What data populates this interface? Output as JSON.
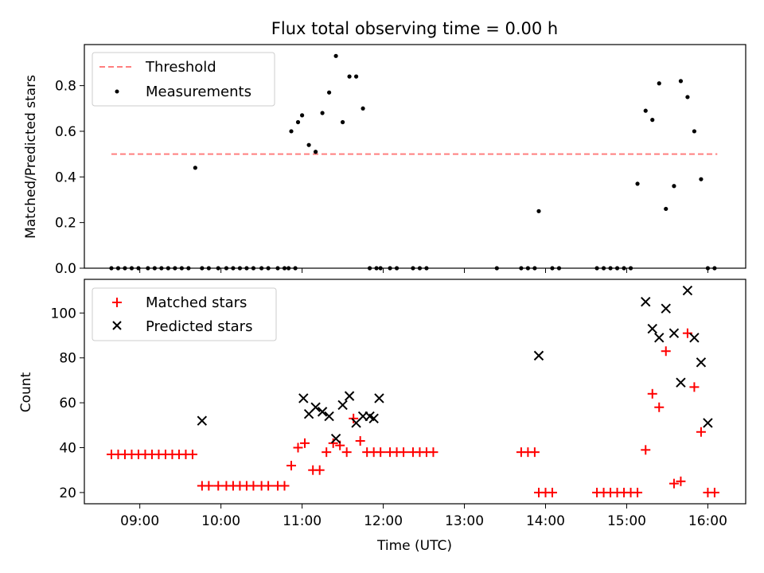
{
  "chart_data": [
    {
      "type": "scatter",
      "title": "Flux total observing time = 0.00 h",
      "xlabel": "",
      "ylabel": "Matched/Predicted stars",
      "xlim": [
        "08:19",
        "16:28"
      ],
      "ylim": [
        0,
        0.98
      ],
      "yticks": [
        0.0,
        0.2,
        0.4,
        0.6,
        0.8
      ],
      "ytick_labels": [
        "0.0",
        "0.2",
        "0.4",
        "0.6",
        "0.8"
      ],
      "grid": false,
      "legend": "top-left",
      "lines": [
        {
          "name": "Threshold",
          "style": "dashed",
          "color": "#ff7f7f",
          "x": [
            "08:39",
            "16:07"
          ],
          "y": [
            0.5,
            0.5
          ]
        }
      ],
      "series": [
        {
          "name": "Measurements",
          "marker": "dot",
          "color": "#000000",
          "x": [
            "08:39",
            "08:44",
            "08:49",
            "08:54",
            "08:59",
            "09:06",
            "09:11",
            "09:16",
            "09:21",
            "09:26",
            "09:31",
            "09:36",
            "09:41",
            "09:46",
            "09:51",
            "09:58",
            "10:04",
            "10:09",
            "10:14",
            "10:19",
            "10:24",
            "10:30",
            "10:35",
            "10:42",
            "10:47",
            "10:52",
            "10:57",
            "10:50",
            "10:55",
            "11:00",
            "11:05",
            "11:10",
            "11:15",
            "11:20",
            "11:25",
            "11:30",
            "11:35",
            "11:40",
            "11:45",
            "11:50",
            "11:55",
            "11:58",
            "12:05",
            "12:10",
            "13:24",
            "13:42",
            "13:47",
            "13:52",
            "13:55",
            "14:05",
            "14:10",
            "14:38",
            "14:43",
            "14:48",
            "14:53",
            "14:58",
            "15:03",
            "15:08",
            "15:14",
            "15:19",
            "15:24",
            "15:29",
            "15:35",
            "15:40",
            "15:45",
            "15:50",
            "15:55",
            "16:00",
            "16:05",
            "12:22",
            "12:27",
            "12:32"
          ],
          "y": [
            0,
            0,
            0,
            0,
            0,
            0,
            0,
            0,
            0,
            0,
            0,
            0,
            0.44,
            0,
            0,
            0,
            0,
            0,
            0,
            0,
            0,
            0,
            0,
            0,
            0,
            0.6,
            0.64,
            0,
            0,
            0.67,
            0.54,
            0.51,
            0.68,
            0.77,
            0.93,
            0.64,
            0.84,
            0.84,
            0.7,
            0,
            0,
            0,
            0,
            0,
            0,
            0,
            0,
            0,
            0.25,
            0,
            0,
            0,
            0,
            0,
            0,
            0,
            0,
            0.37,
            0.69,
            0.65,
            0.81,
            0.26,
            0.36,
            0.82,
            0.75,
            0.6,
            0.39,
            0,
            0,
            0,
            0,
            0
          ]
        }
      ]
    },
    {
      "type": "scatter",
      "title": "",
      "xlabel": "Time (UTC)",
      "ylabel": "Count",
      "xlim": [
        "08:19",
        "16:28"
      ],
      "ylim": [
        15,
        115
      ],
      "yticks": [
        20,
        40,
        60,
        80,
        100
      ],
      "xticks": [
        "09:00",
        "10:00",
        "11:00",
        "12:00",
        "13:00",
        "14:00",
        "15:00",
        "16:00"
      ],
      "grid": false,
      "legend": "top-left",
      "series": [
        {
          "name": "Matched stars",
          "marker": "plus",
          "color": "#ff0000",
          "x": [
            "08:39",
            "08:44",
            "08:49",
            "08:54",
            "08:59",
            "09:04",
            "09:09",
            "09:14",
            "09:19",
            "09:24",
            "09:29",
            "09:34",
            "09:39",
            "09:46",
            "09:51",
            "09:58",
            "10:04",
            "10:09",
            "10:14",
            "10:19",
            "10:24",
            "10:30",
            "10:35",
            "10:42",
            "10:47",
            "10:52",
            "10:57",
            "11:02",
            "11:08",
            "11:13",
            "11:18",
            "11:23",
            "11:28",
            "11:33",
            "11:38",
            "11:43",
            "11:48",
            "11:53",
            "11:58",
            "12:05",
            "12:10",
            "12:15",
            "12:22",
            "12:27",
            "12:32",
            "12:37",
            "13:42",
            "13:47",
            "13:52",
            "13:55",
            "14:00",
            "14:05",
            "14:38",
            "14:43",
            "14:48",
            "14:53",
            "14:58",
            "15:03",
            "15:08",
            "15:14",
            "15:19",
            "15:24",
            "15:29",
            "15:35",
            "15:40",
            "15:45",
            "15:50",
            "15:55",
            "16:00",
            "16:05"
          ],
          "y": [
            37,
            37,
            37,
            37,
            37,
            37,
            37,
            37,
            37,
            37,
            37,
            37,
            37,
            23,
            23,
            23,
            23,
            23,
            23,
            23,
            23,
            23,
            23,
            23,
            23,
            32,
            40,
            42,
            30,
            30,
            38,
            42,
            41,
            38,
            53,
            43,
            38,
            38,
            38,
            38,
            38,
            38,
            38,
            38,
            38,
            38,
            38,
            38,
            38,
            20,
            20,
            20,
            20,
            20,
            20,
            20,
            20,
            20,
            20,
            39,
            64,
            58,
            83,
            24,
            25,
            91,
            67,
            47,
            20,
            20
          ]
        },
        {
          "name": "Predicted stars",
          "marker": "x",
          "color": "#000000",
          "x": [
            "09:46",
            "11:53",
            "11:57",
            "11:01",
            "11:05",
            "11:10",
            "11:15",
            "11:20",
            "11:25",
            "11:30",
            "11:35",
            "11:40",
            "11:45",
            "11:50",
            "13:55",
            "15:14",
            "15:19",
            "15:24",
            "15:29",
            "15:35",
            "15:40",
            "15:45",
            "15:50",
            "15:55",
            "16:00"
          ],
          "y": [
            52,
            53,
            62,
            62,
            55,
            58,
            56,
            54,
            44,
            59,
            63,
            51,
            54,
            54,
            81,
            105,
            93,
            89,
            102,
            91,
            69,
            110,
            89,
            78,
            51
          ]
        }
      ]
    }
  ]
}
